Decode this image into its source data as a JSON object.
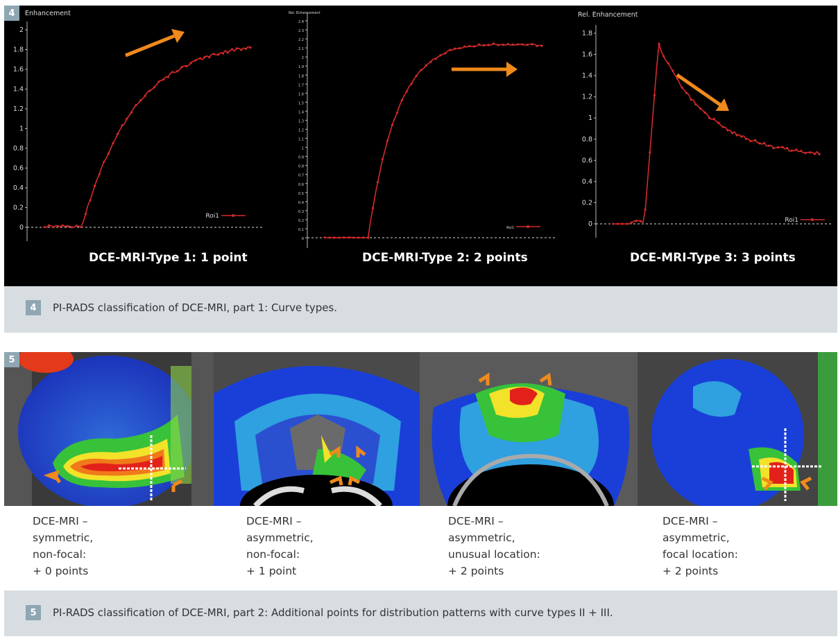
{
  "figure4": {
    "number": "4",
    "charts": [
      {
        "caption": "DCE-MRI-Type 1: 1 point",
        "ylabel": "Enhancement",
        "legend": "Roi1",
        "yticks": [
          "0",
          "0.2",
          "0.4",
          "0.6",
          "0.8",
          "1",
          "1.2",
          "1.4",
          "1.6",
          "1.8",
          "2"
        ],
        "arrow": "up-right"
      },
      {
        "caption": "DCE-MRI-Type 2: 2 points",
        "ylabel": "Rel. Enhancement",
        "legend": "Roi1",
        "yticks": [
          "0",
          "0.1",
          "0.2",
          "0.3",
          "0.4",
          "0.5",
          "0.6",
          "0.7",
          "0.8",
          "0.9",
          "1",
          "1.1",
          "1.2",
          "1.3",
          "1.4",
          "1.5",
          "1.6",
          "1.7",
          "1.8",
          "1.9",
          "2",
          "2.1",
          "2.2",
          "2.3",
          "2.4"
        ],
        "arrow": "right"
      },
      {
        "caption": "DCE-MRI-Type 3: 3 points",
        "ylabel": "Rel. Enhancement",
        "legend": "Roi1",
        "yticks": [
          "0",
          "0.2",
          "0.4",
          "0.6",
          "0.8",
          "1",
          "1.2",
          "1.4",
          "1.6",
          "1.8"
        ],
        "arrow": "down-right"
      }
    ],
    "caption_number": "4",
    "caption": "PI-RADS classification of DCE-MRI, part 1: Curve types."
  },
  "figure5": {
    "number": "5",
    "panels": [
      {
        "lines": [
          "DCE-MRI –",
          "symmetric,",
          "non-focal:",
          "+ 0 points"
        ]
      },
      {
        "lines": [
          "DCE-MRI –",
          "asymmetric,",
          "non-focal:",
          "+ 1 point"
        ]
      },
      {
        "lines": [
          "DCE-MRI –",
          "asymmetric,",
          "unusual location:",
          "+ 2 points"
        ]
      },
      {
        "lines": [
          "DCE-MRI –",
          "asymmetric,",
          "focal location:",
          "+ 2 points"
        ]
      }
    ],
    "caption_number": "5",
    "caption": "PI-RADS classification of DCE-MRI, part 2: Additional points for distribution patterns with curve types II + III."
  },
  "colors": {
    "curve": "#d42a2a",
    "arrow": "#f08a1c",
    "badge": "#8fa6b3",
    "caption_bg": "#d7dde1"
  }
}
